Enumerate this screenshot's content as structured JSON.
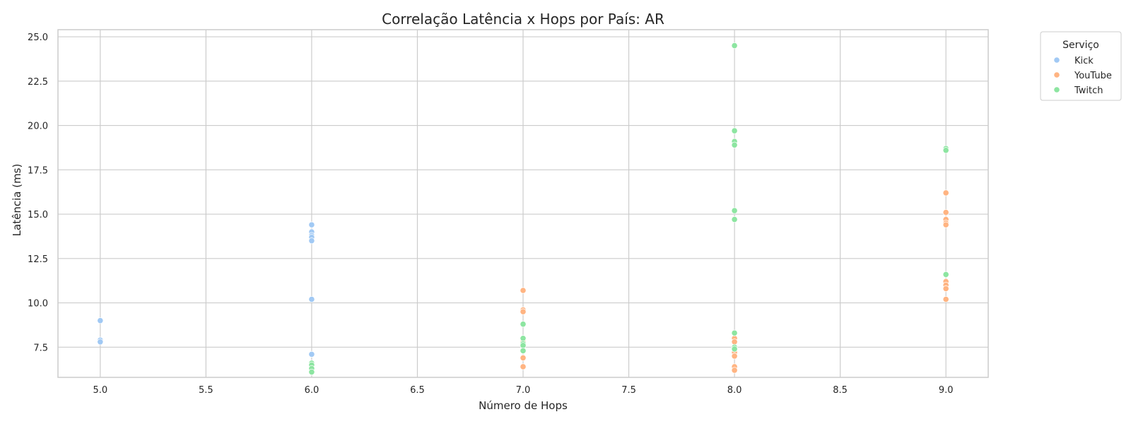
{
  "chart_data": {
    "type": "scatter",
    "title": "Correlação Latência x Hops por País: AR",
    "xlabel": "Número de Hops",
    "ylabel": "Latência (ms)",
    "xlim": [
      4.8,
      9.2
    ],
    "ylim": [
      5.8,
      25.4
    ],
    "xticks": [
      5.0,
      5.5,
      6.0,
      6.5,
      7.0,
      7.5,
      8.0,
      8.5,
      9.0
    ],
    "yticks": [
      7.5,
      10.0,
      12.5,
      15.0,
      17.5,
      20.0,
      22.5,
      25.0
    ],
    "xtick_labels": [
      "5.0",
      "5.5",
      "6.0",
      "6.5",
      "7.0",
      "7.5",
      "8.0",
      "8.5",
      "9.0"
    ],
    "ytick_labels": [
      "7.5",
      "10.0",
      "12.5",
      "15.0",
      "17.5",
      "20.0",
      "22.5",
      "25.0"
    ],
    "grid": true,
    "legend": {
      "title": "Serviço",
      "placement": "outside-top-right"
    },
    "series": [
      {
        "name": "Kick",
        "color": "#a1c9f4",
        "points": [
          [
            5,
            9.0
          ],
          [
            5,
            7.9
          ],
          [
            5,
            7.8
          ],
          [
            6,
            14.4
          ],
          [
            6,
            14.0
          ],
          [
            6,
            13.8
          ],
          [
            6,
            13.7
          ],
          [
            6,
            13.5
          ],
          [
            6,
            10.2
          ],
          [
            6,
            7.1
          ],
          [
            6,
            6.3
          ],
          [
            6,
            6.1
          ]
        ]
      },
      {
        "name": "YouTube",
        "color": "#ffb482",
        "points": [
          [
            7,
            10.7
          ],
          [
            7,
            9.6
          ],
          [
            7,
            9.5
          ],
          [
            7,
            8.0
          ],
          [
            7,
            7.8
          ],
          [
            7,
            6.9
          ],
          [
            7,
            6.4
          ],
          [
            8,
            8.0
          ],
          [
            8,
            7.8
          ],
          [
            8,
            7.2
          ],
          [
            8,
            7.0
          ],
          [
            8,
            6.4
          ],
          [
            8,
            6.2
          ],
          [
            9,
            16.2
          ],
          [
            9,
            15.1
          ],
          [
            9,
            14.7
          ],
          [
            9,
            14.5
          ],
          [
            9,
            14.4
          ],
          [
            9,
            11.2
          ],
          [
            9,
            11.0
          ],
          [
            9,
            10.8
          ],
          [
            9,
            10.2
          ]
        ]
      },
      {
        "name": "Twitch",
        "color": "#8de5a1",
        "points": [
          [
            6,
            6.6
          ],
          [
            6,
            6.5
          ],
          [
            6,
            6.3
          ],
          [
            6,
            6.1
          ],
          [
            7,
            8.8
          ],
          [
            7,
            8.0
          ],
          [
            7,
            7.7
          ],
          [
            7,
            7.6
          ],
          [
            7,
            7.3
          ],
          [
            8,
            24.5
          ],
          [
            8,
            19.7
          ],
          [
            8,
            19.1
          ],
          [
            8,
            18.9
          ],
          [
            8,
            15.2
          ],
          [
            8,
            14.7
          ],
          [
            8,
            8.3
          ],
          [
            8,
            7.5
          ],
          [
            8,
            7.4
          ],
          [
            9,
            18.7
          ],
          [
            9,
            18.6
          ],
          [
            9,
            11.6
          ]
        ]
      }
    ]
  }
}
